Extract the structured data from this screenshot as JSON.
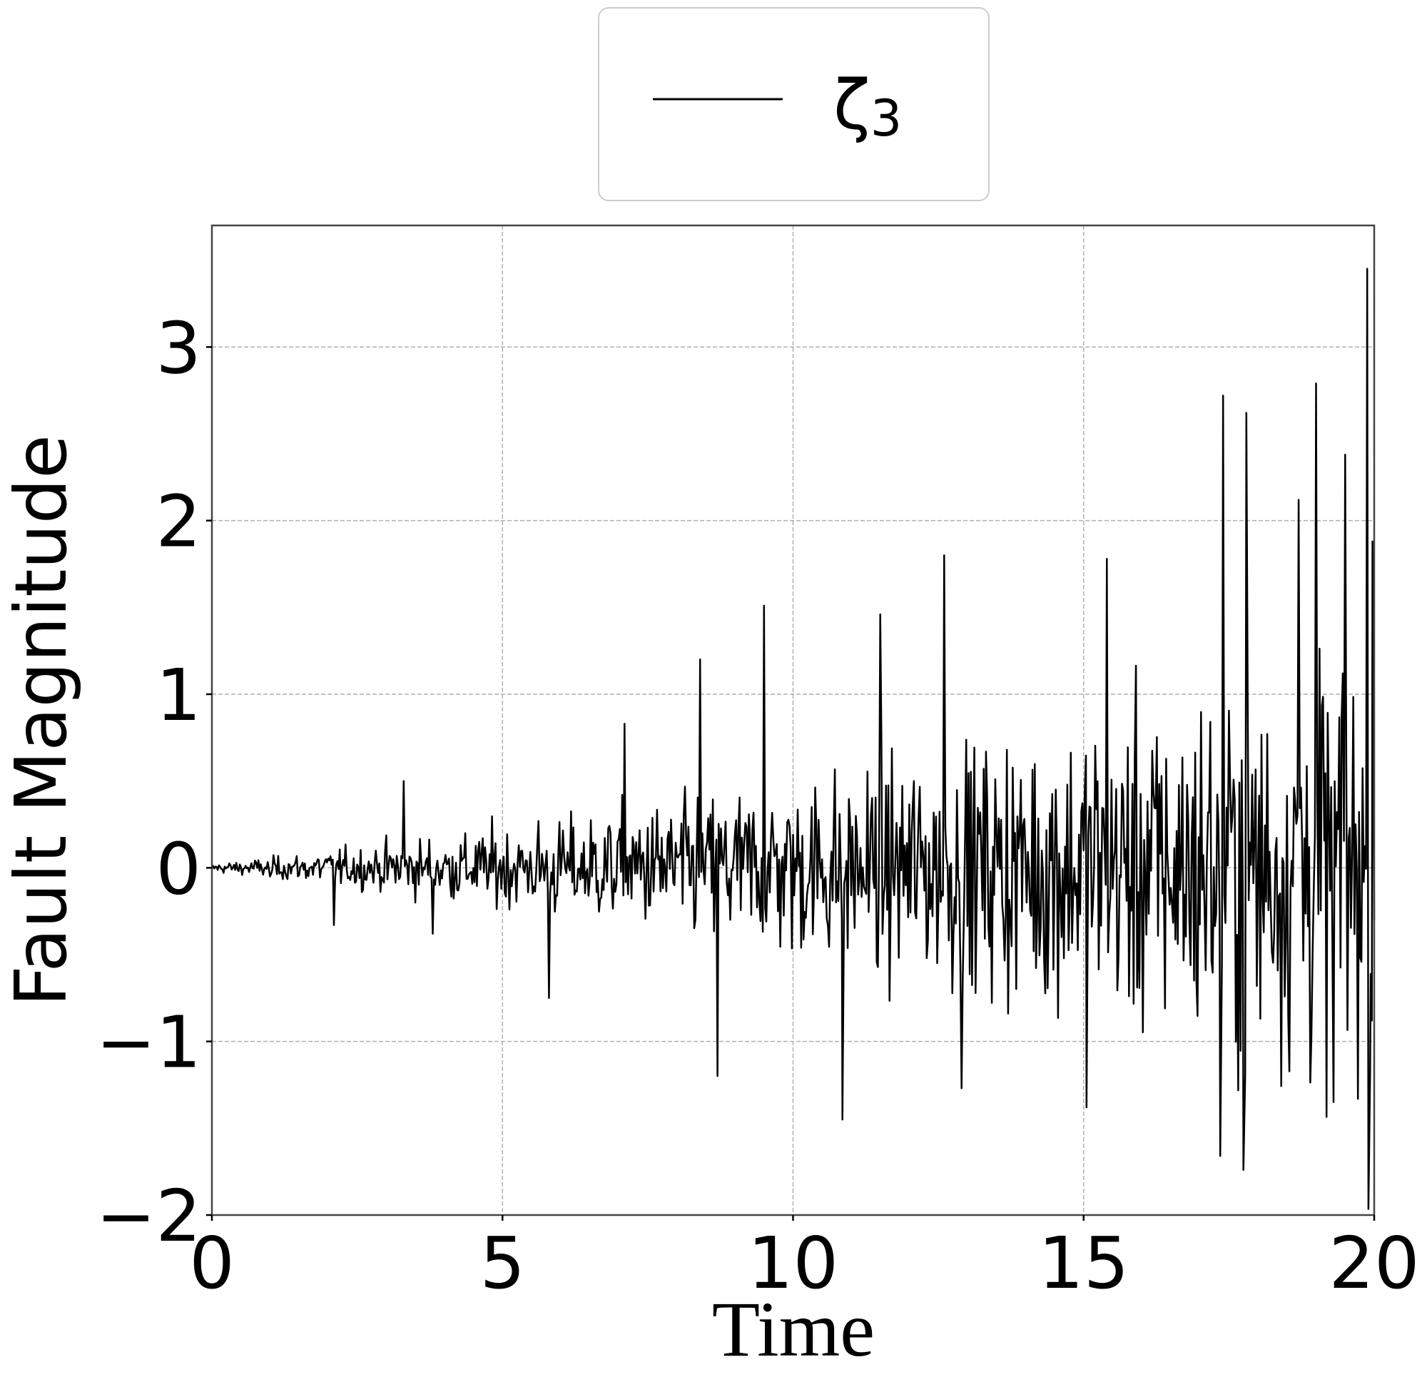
{
  "chart_data": {
    "type": "line",
    "title": "",
    "xlabel": "Time",
    "ylabel": "Fault Magnitude",
    "xlim": [
      0,
      20
    ],
    "ylim": [
      -2,
      3.7
    ],
    "xticks": [
      0,
      5,
      10,
      15,
      20
    ],
    "xtick_labels": [
      "0",
      "5",
      "10",
      "15",
      "20"
    ],
    "yticks": [
      -2,
      -1,
      0,
      1,
      2,
      3
    ],
    "ytick_labels": [
      "−2",
      "−1",
      "0",
      "1",
      "2",
      "3"
    ],
    "grid": true,
    "legend_position": "upper center (outside, above axes)",
    "series": [
      {
        "name": "ζ₃",
        "color": "#000000",
        "description": "Noisy fault signal whose amplitude grows with time (near 0 at t=0, spikes up to ~3.45 near t=19.9)",
        "key_points": [
          {
            "x": 0.0,
            "y": 0.0
          },
          {
            "x": 1.0,
            "y": -0.05
          },
          {
            "x": 2.1,
            "y": -0.33
          },
          {
            "x": 3.3,
            "y": 0.5
          },
          {
            "x": 3.8,
            "y": -0.38
          },
          {
            "x": 5.8,
            "y": -0.75
          },
          {
            "x": 7.1,
            "y": 0.83
          },
          {
            "x": 8.4,
            "y": 1.2
          },
          {
            "x": 8.7,
            "y": -1.2
          },
          {
            "x": 9.5,
            "y": 1.51
          },
          {
            "x": 10.85,
            "y": -1.45
          },
          {
            "x": 11.5,
            "y": 1.46
          },
          {
            "x": 12.6,
            "y": 1.8
          },
          {
            "x": 12.9,
            "y": -1.27
          },
          {
            "x": 15.05,
            "y": -1.38
          },
          {
            "x": 15.4,
            "y": 1.78
          },
          {
            "x": 17.35,
            "y": -1.66
          },
          {
            "x": 17.4,
            "y": 2.72
          },
          {
            "x": 17.75,
            "y": -1.74
          },
          {
            "x": 17.8,
            "y": 2.62
          },
          {
            "x": 18.7,
            "y": 2.12
          },
          {
            "x": 19.0,
            "y": 2.79
          },
          {
            "x": 19.3,
            "y": -1.35
          },
          {
            "x": 19.5,
            "y": 2.38
          },
          {
            "x": 19.88,
            "y": 3.45
          },
          {
            "x": 19.93,
            "y": -1.17
          },
          {
            "x": 19.97,
            "y": 1.88
          },
          {
            "x": 20.0,
            "y": -0.3
          }
        ]
      }
    ]
  },
  "legend": {
    "label_main": "ζ",
    "label_sub": "3"
  },
  "axes": {
    "xlabel": "Time",
    "ylabel": "Fault Magnitude"
  }
}
